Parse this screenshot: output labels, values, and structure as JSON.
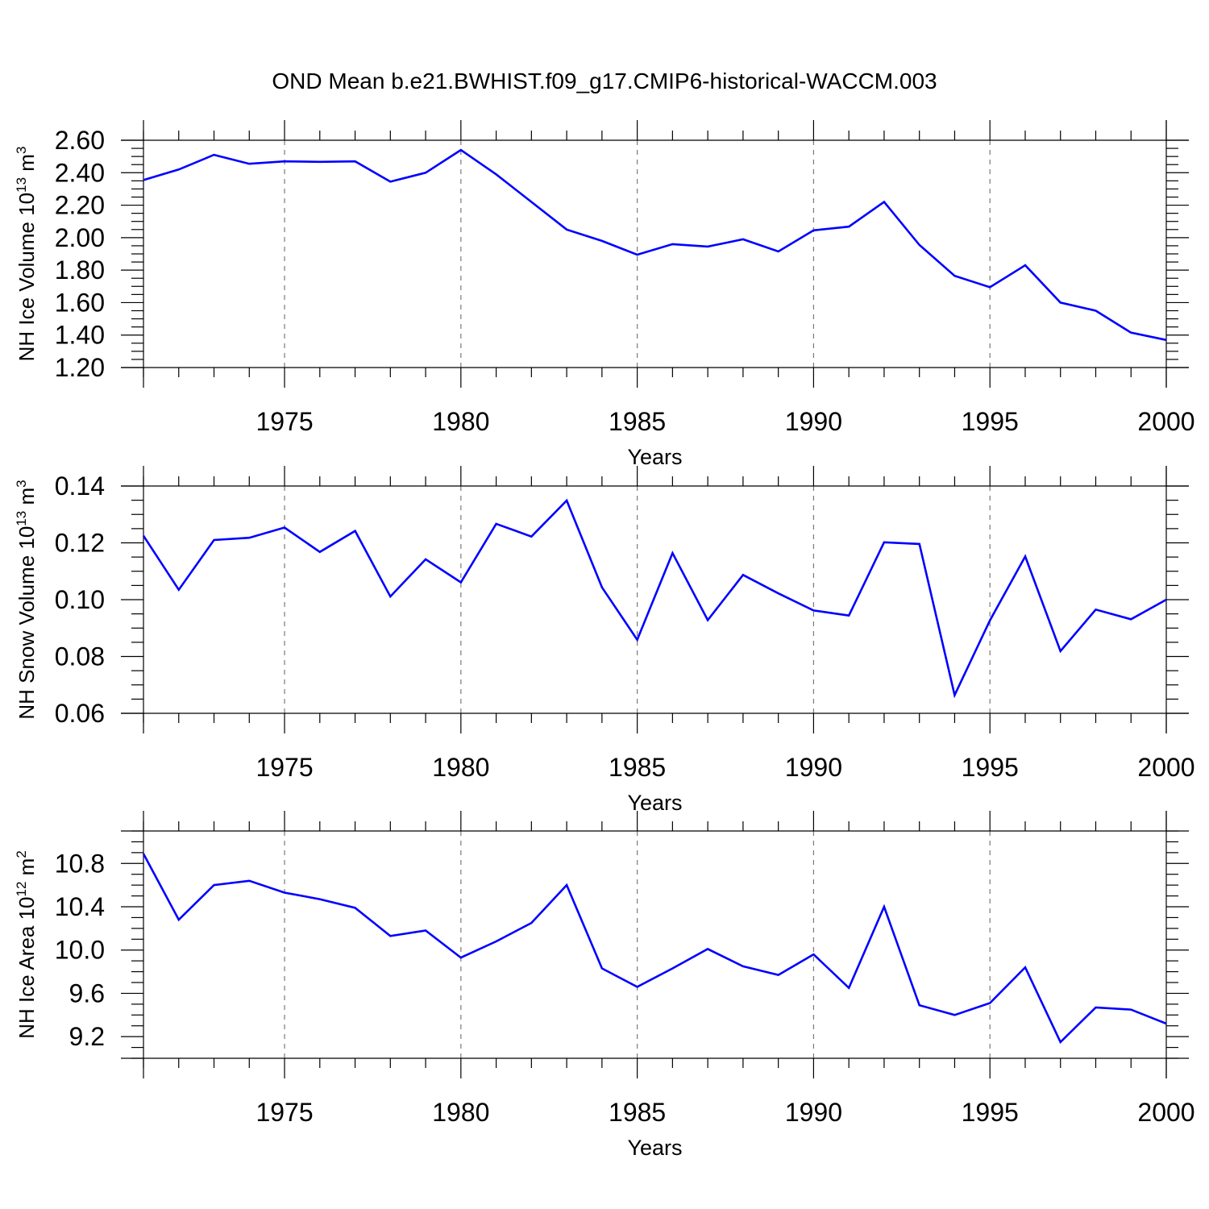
{
  "figure_title": "OND Mean b.e21.BWHIST.f09_g17.CMIP6-historical-WACCM.003",
  "line_color": "#0000ff",
  "chart_data": [
    {
      "type": "line",
      "title": "",
      "xlabel": "Years",
      "ylabel": "NH Ice Volume 10",
      "ylabel_exp": "13",
      "ylabel_unit": " m",
      "ylabel_unit_exp": "3",
      "xlim": [
        1971,
        2000
      ],
      "ylim": [
        1.2,
        2.6
      ],
      "x_ticks": [
        1975,
        1980,
        1985,
        1990,
        1995,
        2000
      ],
      "x_tick_labels": [
        "1975",
        "1980",
        "1985",
        "1990",
        "1995",
        "2000"
      ],
      "y_ticks": [
        1.2,
        1.4,
        1.6,
        1.8,
        2.0,
        2.2,
        2.4,
        2.6
      ],
      "y_tick_labels": [
        "1.20",
        "1.40",
        "1.60",
        "1.80",
        "2.00",
        "2.20",
        "2.40",
        "2.60"
      ],
      "y_minor_step": 0.05,
      "series": [
        {
          "name": "NH Ice Volume",
          "x": [
            1971,
            1972,
            1973,
            1974,
            1975,
            1976,
            1977,
            1978,
            1979,
            1980,
            1981,
            1982,
            1983,
            1984,
            1985,
            1986,
            1987,
            1988,
            1989,
            1990,
            1991,
            1992,
            1993,
            1994,
            1995,
            1996,
            1997,
            1998,
            1999,
            2000
          ],
          "values": [
            2.355,
            2.42,
            2.51,
            2.455,
            2.47,
            2.467,
            2.47,
            2.345,
            2.4,
            2.54,
            2.39,
            2.22,
            2.05,
            1.98,
            1.895,
            1.96,
            1.945,
            1.99,
            1.915,
            2.045,
            2.068,
            2.22,
            1.955,
            1.765,
            1.695,
            1.83,
            1.6,
            1.55,
            1.415,
            1.37
          ]
        }
      ]
    },
    {
      "type": "line",
      "title": "",
      "xlabel": "Years",
      "ylabel": "NH Snow Volume 10",
      "ylabel_exp": "13",
      "ylabel_unit": " m",
      "ylabel_unit_exp": "3",
      "xlim": [
        1971,
        2000
      ],
      "ylim": [
        0.06,
        0.14
      ],
      "x_ticks": [
        1975,
        1980,
        1985,
        1990,
        1995,
        2000
      ],
      "x_tick_labels": [
        "1975",
        "1980",
        "1985",
        "1990",
        "1995",
        "2000"
      ],
      "y_ticks": [
        0.06,
        0.08,
        0.1,
        0.12,
        0.14
      ],
      "y_tick_labels": [
        "0.06",
        "0.08",
        "0.10",
        "0.12",
        "0.14"
      ],
      "y_minor_step": 0.005,
      "series": [
        {
          "name": "NH Snow Volume",
          "x": [
            1971,
            1972,
            1973,
            1974,
            1975,
            1976,
            1977,
            1978,
            1979,
            1980,
            1981,
            1982,
            1983,
            1984,
            1985,
            1986,
            1987,
            1988,
            1989,
            1990,
            1991,
            1992,
            1993,
            1994,
            1995,
            1996,
            1997,
            1998,
            1999,
            2000
          ],
          "values": [
            0.1225,
            0.1035,
            0.121,
            0.1218,
            0.1254,
            0.1168,
            0.1242,
            0.1011,
            0.1142,
            0.1061,
            0.1267,
            0.1222,
            0.1349,
            0.1043,
            0.0859,
            0.1164,
            0.0928,
            0.1087,
            0.1022,
            0.0962,
            0.0944,
            0.1202,
            0.1196,
            0.0664,
            0.0927,
            0.1152,
            0.0819,
            0.0965,
            0.0931,
            0.1
          ]
        }
      ]
    },
    {
      "type": "line",
      "title": "",
      "xlabel": "Years",
      "ylabel": "NH Ice Area 10",
      "ylabel_exp": "12",
      "ylabel_unit": " m",
      "ylabel_unit_exp": "2",
      "xlim": [
        1971,
        2000
      ],
      "ylim": [
        9.0,
        11.1
      ],
      "x_ticks": [
        1975,
        1980,
        1985,
        1990,
        1995,
        2000
      ],
      "x_tick_labels": [
        "1975",
        "1980",
        "1985",
        "1990",
        "1995",
        "2000"
      ],
      "y_ticks": [
        9.2,
        9.6,
        10.0,
        10.4,
        10.8
      ],
      "y_tick_labels": [
        "9.2",
        "9.6",
        "10.0",
        "10.4",
        "10.8"
      ],
      "y_minor_step": 0.1,
      "series": [
        {
          "name": "NH Ice Area",
          "x": [
            1971,
            1972,
            1973,
            1974,
            1975,
            1976,
            1977,
            1978,
            1979,
            1980,
            1981,
            1982,
            1983,
            1984,
            1985,
            1986,
            1987,
            1988,
            1989,
            1990,
            1991,
            1992,
            1993,
            1994,
            1995,
            1996,
            1997,
            1998,
            1999,
            2000
          ],
          "values": [
            10.89,
            10.28,
            10.6,
            10.64,
            10.53,
            10.47,
            10.39,
            10.13,
            10.18,
            9.93,
            10.08,
            10.25,
            10.6,
            9.83,
            9.66,
            9.83,
            10.01,
            9.85,
            9.77,
            9.96,
            9.65,
            10.4,
            9.49,
            9.4,
            9.51,
            9.84,
            9.15,
            9.47,
            9.45,
            9.32
          ]
        }
      ]
    }
  ]
}
